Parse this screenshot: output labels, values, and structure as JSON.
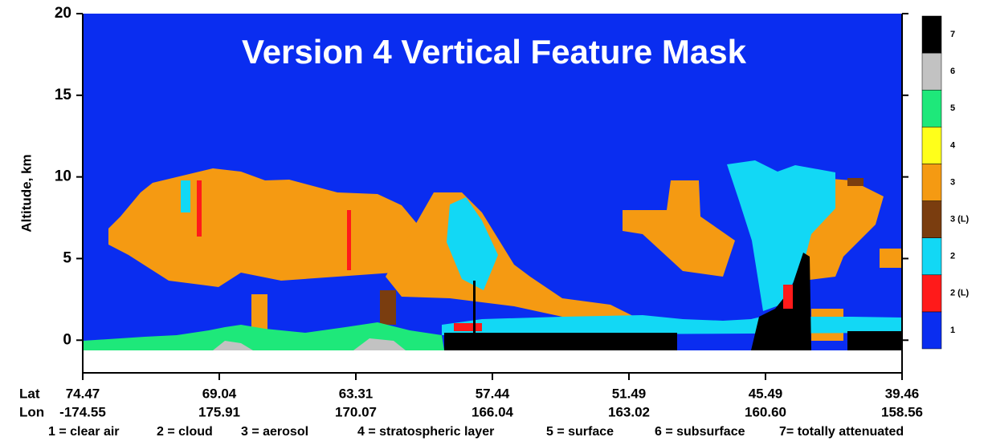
{
  "chart_data": {
    "type": "curtain",
    "title": "Version 4 Vertical Feature Mask",
    "y_label": "Altitude, km",
    "ylim": [
      -2,
      20
    ],
    "yticks": [
      0,
      5,
      10,
      15,
      20
    ],
    "x_rows": [
      {
        "name": "Lat",
        "labels": [
          "74.47",
          "69.04",
          "63.31",
          "57.44",
          "51.49",
          "45.49",
          "39.46"
        ]
      },
      {
        "name": "Lon",
        "labels": [
          "-174.55",
          "175.91",
          "170.07",
          "166.04",
          "163.02",
          "160.60",
          "158.56"
        ]
      }
    ],
    "colorbar": {
      "labels": [
        "1",
        "2 (L)",
        "2",
        "3 (L)",
        "3",
        "4",
        "5",
        "6",
        "7"
      ],
      "colors": [
        "#0a2df0",
        "#ff1a1a",
        "#12d8f5",
        "#7a3d0f",
        "#f59a12",
        "#ffff1a",
        "#1ee87a",
        "#c2c2c2",
        "#000000"
      ]
    },
    "legend": [
      "1 = clear air",
      "2 = cloud",
      "3 = aerosol",
      "4 = stratospheric layer",
      "5 = surface",
      "6 = subsurface",
      "7= totally attenuated"
    ]
  }
}
